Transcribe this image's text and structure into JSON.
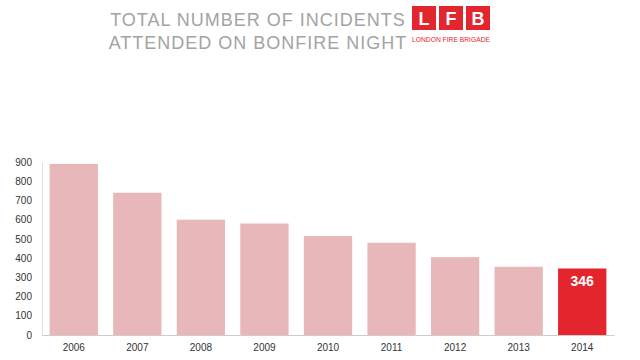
{
  "chart_data": {
    "type": "bar",
    "title": [
      "TOTAL NUMBER OF INCIDENTS",
      "ATTENDED ON BONFIRE NIGHT"
    ],
    "logo_letters": [
      "L",
      "F",
      "B"
    ],
    "logo_text": "LONDON FIRE BRIGADE",
    "categories": [
      "2006",
      "2007",
      "2008",
      "2009",
      "2010",
      "2011",
      "2012",
      "2013",
      "2014"
    ],
    "values": [
      890,
      740,
      600,
      580,
      515,
      480,
      405,
      355,
      346
    ],
    "value_labels": [
      null,
      null,
      null,
      null,
      null,
      null,
      null,
      null,
      "346"
    ],
    "colors": [
      "#e8b7ba",
      "#e8b7ba",
      "#e8b7ba",
      "#e8b7ba",
      "#e8b7ba",
      "#e8b7ba",
      "#e8b7ba",
      "#e8b7ba",
      "#e3262d"
    ],
    "ylim": [
      0,
      900
    ],
    "yticks": [
      0,
      100,
      200,
      300,
      400,
      500,
      600,
      700,
      800,
      900
    ],
    "grid": false
  }
}
